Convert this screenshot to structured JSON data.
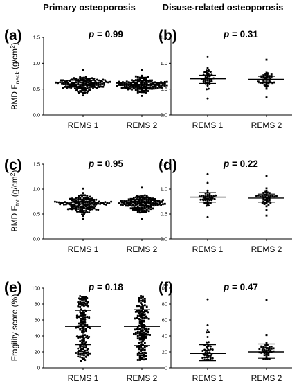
{
  "columns": [
    "Primary osteoporosis",
    "Disuse-related osteoporosis"
  ],
  "chart_data": [
    {
      "type": "scatter",
      "panel": "(a)",
      "annotation": "p = 0.99",
      "ylabel": {
        "main": "BMD F",
        "sub": "neck",
        "unit": " (g/cm",
        "sup": "2",
        "close": ")"
      },
      "categories": [
        "REMS 1",
        "REMS 2"
      ],
      "ylim": [
        0,
        1.5
      ],
      "yticks": [
        "0.0",
        "0.5",
        "1.0",
        "1.5"
      ],
      "groups": [
        {
          "name": "REMS 1",
          "mean": 0.59,
          "sd_low": 0.52,
          "sd_high": 0.66,
          "min": 0.38,
          "max": 0.87,
          "n": 150,
          "marker": "circle"
        },
        {
          "name": "REMS 2",
          "mean": 0.59,
          "sd_low": 0.52,
          "sd_high": 0.66,
          "min": 0.37,
          "max": 0.87,
          "n": 150,
          "marker": "square"
        }
      ]
    },
    {
      "type": "scatter",
      "panel": "(b)",
      "annotation": "p = 0.31",
      "categories": [
        "REMS 1",
        "REMS 2"
      ],
      "ylim": [
        0,
        1.5
      ],
      "yticks": [
        "0.0",
        "0.5",
        "1.0",
        "1.5"
      ],
      "groups": [
        {
          "name": "REMS 1",
          "mean": 0.7,
          "sd_low": 0.61,
          "sd_high": 0.77,
          "min": 0.32,
          "max": 1.12,
          "n": 42,
          "marker": "circle"
        },
        {
          "name": "REMS 2",
          "mean": 0.69,
          "sd_low": 0.62,
          "sd_high": 0.75,
          "min": 0.34,
          "max": 1.07,
          "n": 42,
          "marker": "square"
        }
      ]
    },
    {
      "type": "scatter",
      "panel": "(c)",
      "annotation": "p = 0.95",
      "ylabel": {
        "main": "BMD F",
        "sub": "tot",
        "unit": " (g/cm",
        "sup": "2",
        "close": ")"
      },
      "categories": [
        "REMS 1",
        "REMS 2"
      ],
      "ylim": [
        0,
        1.5
      ],
      "yticks": [
        "0.0",
        "0.5",
        "1.0",
        "1.5"
      ],
      "groups": [
        {
          "name": "REMS 1",
          "mean": 0.7,
          "sd_low": 0.61,
          "sd_high": 0.79,
          "min": 0.4,
          "max": 1.01,
          "n": 150,
          "marker": "circle"
        },
        {
          "name": "REMS 2",
          "mean": 0.7,
          "sd_low": 0.61,
          "sd_high": 0.79,
          "min": 0.4,
          "max": 1.03,
          "n": 150,
          "marker": "square"
        }
      ]
    },
    {
      "type": "scatter",
      "panel": "(d)",
      "annotation": "p = 0.22",
      "categories": [
        "REMS 1",
        "REMS 2"
      ],
      "ylim": [
        0,
        1.5
      ],
      "yticks": [
        "0.0",
        "0.5",
        "1.0",
        "1.5"
      ],
      "groups": [
        {
          "name": "REMS 1",
          "mean": 0.84,
          "sd_low": 0.74,
          "sd_high": 0.93,
          "min": 0.44,
          "max": 1.3,
          "n": 42,
          "marker": "circle"
        },
        {
          "name": "REMS 2",
          "mean": 0.82,
          "sd_low": 0.74,
          "sd_high": 0.9,
          "min": 0.47,
          "max": 1.26,
          "n": 42,
          "marker": "square"
        }
      ]
    },
    {
      "type": "scatter",
      "panel": "(e)",
      "annotation": "p = 0.18",
      "ylabel": {
        "main": "Fragility score (%)"
      },
      "categories": [
        "REMS 1",
        "REMS 2"
      ],
      "ylim": [
        0,
        100
      ],
      "yticks": [
        "0",
        "20",
        "40",
        "60",
        "80",
        "100"
      ],
      "groups": [
        {
          "name": "REMS 1",
          "mean": 52,
          "sd_low": 29,
          "sd_high": 72,
          "min": 9,
          "max": 90,
          "n": 150,
          "marker": "circle"
        },
        {
          "name": "REMS 2",
          "mean": 52,
          "sd_low": 28,
          "sd_high": 73,
          "min": 10,
          "max": 90,
          "n": 150,
          "marker": "square"
        }
      ]
    },
    {
      "type": "scatter",
      "panel": "(f)",
      "annotation": "p = 0.47",
      "categories": [
        "REMS 1",
        "REMS 2"
      ],
      "ylim": [
        0,
        100
      ],
      "yticks": [
        "0",
        "20",
        "40",
        "60",
        "80",
        "100"
      ],
      "groups": [
        {
          "name": "REMS 1",
          "mean": 18,
          "sd_low": 9,
          "sd_high": 29,
          "min": 10,
          "max": 86,
          "n": 42,
          "marker": "circle"
        },
        {
          "name": "REMS 2",
          "mean": 20,
          "sd_low": 12,
          "sd_high": 30,
          "min": 11,
          "max": 85,
          "n": 42,
          "marker": "square"
        }
      ]
    }
  ]
}
